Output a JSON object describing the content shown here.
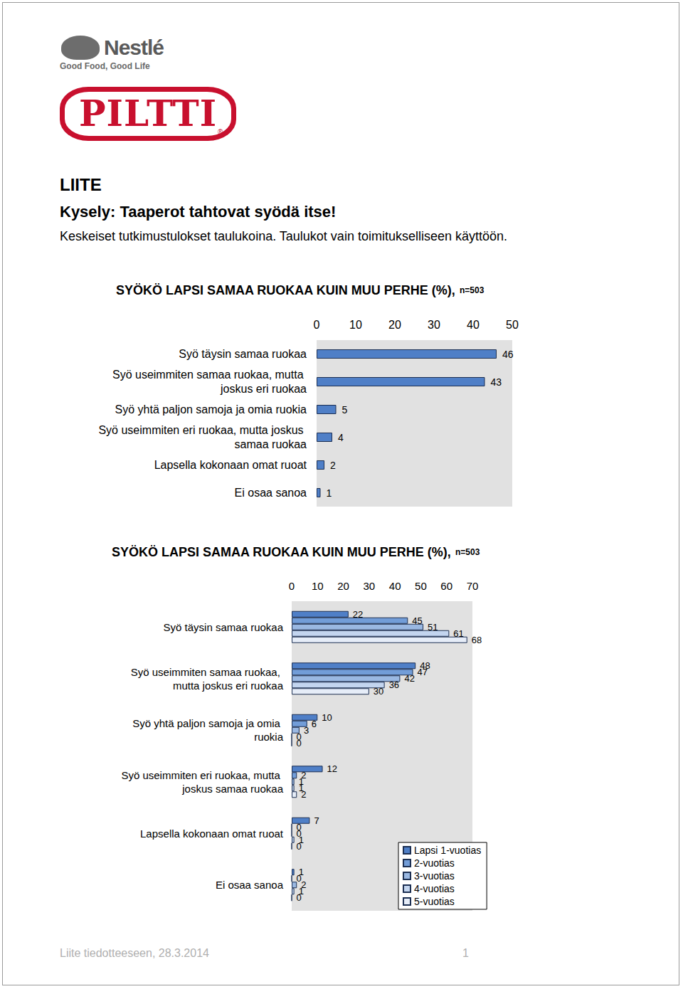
{
  "logos": {
    "brand": "Nestlé",
    "slogan": "Good Food, Good Life",
    "product": "PILTTI",
    "registered": "®"
  },
  "heading": "LIITE",
  "title": "Kysely: Taaperot tahtovat syödä itse!",
  "subtitle": "Keskeiset tutkimustulokset taulukoina. Taulukot vain toimitukselliseen käyttöön.",
  "chart_data": [
    {
      "type": "bar",
      "orientation": "horizontal",
      "title": "SYÖKÖ LAPSI SAMAA RUOKAA KUIN MUU PERHE (%),",
      "subtitle": "n=503",
      "categories": [
        "Syö täysin samaa ruokaa",
        "Syö useimmiten samaa ruokaa, mutta joskus eri ruokaa",
        "Syö yhtä paljon samoja ja omia ruokia",
        "Syö useimmiten eri ruokaa, mutta joskus samaa ruokaa",
        "Lapsella kokonaan omat ruoat",
        "Ei osaa sanoa"
      ],
      "values": [
        46,
        43,
        5,
        4,
        2,
        1
      ],
      "color": "#4f7fc7",
      "xlim": [
        0,
        50
      ],
      "xticks": [
        0,
        10,
        20,
        30,
        40,
        50
      ],
      "grid": false,
      "data_labels": true
    },
    {
      "type": "bar",
      "orientation": "horizontal",
      "title": "SYÖKÖ LAPSI SAMAA RUOKAA KUIN MUU PERHE (%),",
      "subtitle": "n=503",
      "categories": [
        "Syö täysin samaa ruokaa",
        "Syö useimmiten samaa ruokaa, mutta joskus eri ruokaa",
        "Syö yhtä paljon samoja ja omia ruokia",
        "Syö useimmiten eri ruokaa, mutta joskus samaa ruokaa",
        "Lapsella kokonaan omat ruoat",
        "Ei osaa sanoa"
      ],
      "series": [
        {
          "name": "Lapsi 1-vuotias",
          "color": "#4f7fc7",
          "values": [
            22,
            48,
            10,
            12,
            7,
            1
          ]
        },
        {
          "name": "2-vuotias",
          "color": "#729dd8",
          "values": [
            45,
            47,
            6,
            2,
            0,
            0
          ]
        },
        {
          "name": "3-vuotias",
          "color": "#9ab8e2",
          "values": [
            51,
            42,
            3,
            1,
            0,
            2
          ]
        },
        {
          "name": "4-vuotias",
          "color": "#c3d5ef",
          "values": [
            61,
            36,
            0,
            1,
            1,
            1
          ]
        },
        {
          "name": "5-vuotias",
          "color": "#e6edf8",
          "values": [
            68,
            30,
            0,
            2,
            0,
            0
          ]
        }
      ],
      "xlim": [
        0,
        70
      ],
      "xticks": [
        0,
        10,
        20,
        30,
        40,
        50,
        60,
        70
      ],
      "grid": false,
      "data_labels": true,
      "legend": "bottom right"
    }
  ],
  "footer": {
    "text": "Liite tiedotteeseen, 28.3.2014",
    "page": "1"
  }
}
